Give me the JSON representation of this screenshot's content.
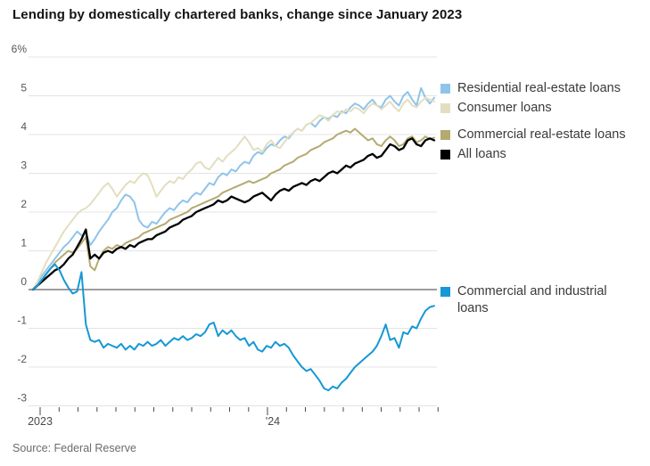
{
  "title": "Lending by domestically chartered banks, change since January 2023",
  "source": "Source: Federal Reserve",
  "colors": {
    "gridline": "#e4e4e4",
    "zero_line": "#8e8e8e",
    "tick": "#4a4a4a",
    "axis_text": "#555555",
    "title_text": "#141414",
    "legend_text": "#3a3a3a",
    "source_text": "#6b6b6b"
  },
  "chart_data": {
    "type": "line",
    "title": "Lending by domestically chartered banks, change since January 2023",
    "x_unit": "weekly, January 2023 through October 2024",
    "x_tick_labels": [
      "2023",
      "'24"
    ],
    "x_months_shown": 22,
    "y_ticks": [
      6,
      5,
      4,
      3,
      2,
      1,
      0,
      -1,
      -2,
      -3
    ],
    "y_tick_labels": [
      "6%",
      "5",
      "4",
      "3",
      "2",
      "1",
      "0",
      "-1",
      "-2",
      "-3"
    ],
    "ylim": [
      -3,
      6
    ],
    "grid": true,
    "legend_position": "right",
    "series": [
      {
        "id": "residential",
        "label": "Residential real-estate loans",
        "color": "#8fc4e9",
        "values": [
          0,
          0.15,
          0.35,
          0.5,
          0.65,
          0.8,
          0.95,
          1.1,
          1.2,
          1.35,
          1.5,
          1.4,
          1.45,
          1.15,
          1.3,
          1.5,
          1.65,
          1.8,
          2.0,
          2.1,
          2.3,
          2.45,
          2.4,
          2.25,
          1.8,
          1.65,
          1.6,
          1.75,
          1.7,
          1.85,
          2.0,
          2.1,
          2.05,
          2.2,
          2.3,
          2.25,
          2.4,
          2.5,
          2.45,
          2.6,
          2.75,
          2.7,
          2.9,
          3.0,
          2.95,
          3.1,
          3.05,
          3.2,
          3.3,
          3.25,
          3.45,
          3.55,
          3.5,
          3.65,
          3.75,
          3.7,
          3.85,
          3.95,
          3.9,
          4.05,
          4.15,
          4.1,
          4.25,
          4.3,
          4.2,
          4.35,
          4.45,
          4.4,
          4.5,
          4.45,
          4.6,
          4.55,
          4.7,
          4.8,
          4.75,
          4.65,
          4.8,
          4.9,
          4.75,
          4.7,
          4.9,
          5.0,
          4.85,
          4.75,
          5.0,
          5.1,
          4.9,
          4.75,
          5.2,
          4.95,
          4.8,
          4.95
        ]
      },
      {
        "id": "consumer",
        "label": "Consumer loans",
        "color": "#e3dec0",
        "values": [
          0,
          0.2,
          0.45,
          0.7,
          0.9,
          1.1,
          1.3,
          1.5,
          1.65,
          1.8,
          1.95,
          2.05,
          2.1,
          2.2,
          2.35,
          2.5,
          2.65,
          2.75,
          2.6,
          2.4,
          2.55,
          2.7,
          2.8,
          2.75,
          2.9,
          3.0,
          2.95,
          2.7,
          2.4,
          2.55,
          2.7,
          2.8,
          2.75,
          2.9,
          2.85,
          3.0,
          3.1,
          3.25,
          3.3,
          3.15,
          3.1,
          3.25,
          3.4,
          3.3,
          3.45,
          3.55,
          3.65,
          3.8,
          3.95,
          3.8,
          3.6,
          3.65,
          3.55,
          3.75,
          3.85,
          3.7,
          3.65,
          3.8,
          3.95,
          4.05,
          4.15,
          4.1,
          4.25,
          4.3,
          4.4,
          4.5,
          4.45,
          4.35,
          4.5,
          4.6,
          4.55,
          4.65,
          4.6,
          4.7,
          4.65,
          4.55,
          4.7,
          4.8,
          4.75,
          4.65,
          4.75,
          4.85,
          4.7,
          4.6,
          4.8,
          4.9,
          4.75,
          4.7,
          4.85,
          4.95,
          4.9,
          4.85
        ]
      },
      {
        "id": "cre",
        "label": "Commercial real-estate loans",
        "color": "#b4aa71",
        "values": [
          0,
          0.1,
          0.25,
          0.4,
          0.55,
          0.7,
          0.8,
          0.9,
          1.0,
          0.95,
          1.05,
          1.2,
          1.35,
          0.6,
          0.5,
          0.8,
          1.0,
          1.1,
          1.05,
          1.15,
          1.1,
          1.2,
          1.25,
          1.3,
          1.35,
          1.45,
          1.5,
          1.55,
          1.6,
          1.65,
          1.7,
          1.8,
          1.85,
          1.9,
          1.95,
          2.0,
          2.1,
          2.15,
          2.2,
          2.25,
          2.3,
          2.35,
          2.4,
          2.5,
          2.55,
          2.6,
          2.65,
          2.7,
          2.75,
          2.8,
          2.75,
          2.8,
          2.85,
          2.9,
          3.0,
          3.05,
          3.1,
          3.2,
          3.25,
          3.3,
          3.4,
          3.45,
          3.5,
          3.6,
          3.65,
          3.7,
          3.8,
          3.85,
          3.9,
          4.0,
          4.05,
          4.1,
          4.05,
          4.15,
          4.05,
          3.95,
          3.85,
          3.9,
          3.75,
          3.7,
          3.85,
          3.95,
          3.85,
          3.7,
          3.75,
          3.9,
          3.95,
          3.8,
          3.85,
          3.95,
          3.88,
          3.92
        ]
      },
      {
        "id": "all",
        "label": "All loans",
        "color": "#000000",
        "values": [
          0,
          0.1,
          0.2,
          0.3,
          0.4,
          0.5,
          0.55,
          0.65,
          0.8,
          0.9,
          1.1,
          1.3,
          1.55,
          0.8,
          0.9,
          0.8,
          0.95,
          1.0,
          0.95,
          1.05,
          1.1,
          1.05,
          1.15,
          1.1,
          1.2,
          1.25,
          1.3,
          1.3,
          1.4,
          1.45,
          1.5,
          1.6,
          1.65,
          1.7,
          1.8,
          1.85,
          1.9,
          2.0,
          2.05,
          2.1,
          2.15,
          2.2,
          2.3,
          2.25,
          2.3,
          2.4,
          2.35,
          2.3,
          2.25,
          2.3,
          2.4,
          2.45,
          2.5,
          2.4,
          2.3,
          2.45,
          2.55,
          2.6,
          2.55,
          2.65,
          2.7,
          2.75,
          2.7,
          2.8,
          2.85,
          2.8,
          2.9,
          3.0,
          3.05,
          3.0,
          3.1,
          3.2,
          3.15,
          3.25,
          3.3,
          3.35,
          3.45,
          3.5,
          3.4,
          3.45,
          3.6,
          3.75,
          3.7,
          3.6,
          3.65,
          3.85,
          3.9,
          3.75,
          3.7,
          3.85,
          3.9,
          3.85
        ]
      },
      {
        "id": "ci",
        "label": "Commercial and industrial loans",
        "color": "#1598d5",
        "values": [
          0,
          0.1,
          0.25,
          0.4,
          0.55,
          0.65,
          0.5,
          0.25,
          0.05,
          -0.1,
          -0.05,
          0.45,
          -0.9,
          -1.3,
          -1.35,
          -1.3,
          -1.5,
          -1.4,
          -1.45,
          -1.5,
          -1.4,
          -1.55,
          -1.45,
          -1.55,
          -1.4,
          -1.45,
          -1.35,
          -1.45,
          -1.4,
          -1.3,
          -1.45,
          -1.35,
          -1.25,
          -1.3,
          -1.2,
          -1.3,
          -1.25,
          -1.15,
          -1.2,
          -1.1,
          -0.9,
          -0.85,
          -1.2,
          -1.05,
          -1.15,
          -1.05,
          -1.2,
          -1.3,
          -1.25,
          -1.45,
          -1.35,
          -1.55,
          -1.6,
          -1.45,
          -1.5,
          -1.35,
          -1.45,
          -1.4,
          -1.5,
          -1.7,
          -1.85,
          -2.0,
          -2.1,
          -2.05,
          -2.2,
          -2.35,
          -2.55,
          -2.6,
          -2.5,
          -2.55,
          -2.4,
          -2.3,
          -2.15,
          -2.0,
          -1.9,
          -1.8,
          -1.7,
          -1.6,
          -1.45,
          -1.2,
          -0.9,
          -1.3,
          -1.25,
          -1.5,
          -1.1,
          -1.15,
          -0.95,
          -1.0,
          -0.75,
          -0.55,
          -0.45,
          -0.42
        ]
      }
    ]
  }
}
